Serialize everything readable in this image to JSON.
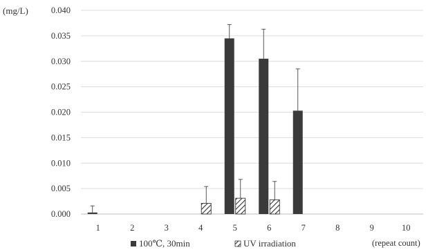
{
  "chart_data": {
    "type": "bar",
    "title": "",
    "ylabel": "(mg/L)",
    "xlabel": "(repeat count)",
    "ylim": [
      0,
      0.04
    ],
    "ytick_step": 0.005,
    "ytick_labels": [
      "0.000",
      "0.005",
      "0.010",
      "0.015",
      "0.020",
      "0.025",
      "0.030",
      "0.035",
      "0.040"
    ],
    "categories": [
      "1",
      "2",
      "3",
      "4",
      "5",
      "6",
      "7",
      "8",
      "9",
      "10"
    ],
    "grid": true,
    "legend_position": "bottom",
    "series": [
      {
        "name": "100℃, 30min",
        "style": "solid",
        "color": "#3a3a3a",
        "values": [
          0.0003,
          null,
          null,
          null,
          0.0345,
          0.0305,
          0.0203,
          null,
          null,
          null
        ],
        "error": [
          0.0013,
          null,
          null,
          null,
          0.0027,
          0.0058,
          0.0082,
          null,
          null,
          null
        ]
      },
      {
        "name": "UV irradiation",
        "style": "hatched",
        "color": "#3a3a3a",
        "values": [
          null,
          null,
          null,
          0.0021,
          0.0031,
          0.0028,
          null,
          null,
          null,
          null
        ],
        "error": [
          null,
          null,
          null,
          0.0033,
          0.0037,
          0.0036,
          null,
          null,
          null,
          null
        ]
      }
    ]
  }
}
